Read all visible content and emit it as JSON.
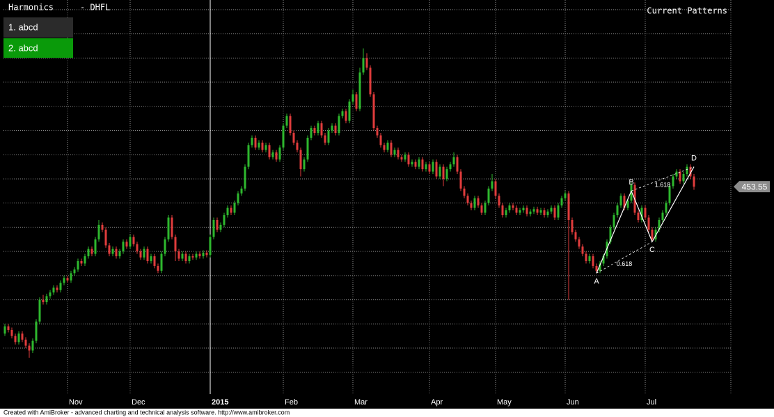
{
  "chart_data": {
    "type": "candlestick",
    "title": "Harmonics",
    "subtitle": "- DHFL",
    "annotation": "Current Patterns",
    "pattern_menu": [
      "1. abcd",
      "2. abcd"
    ],
    "footer": "Created with AmiBroker - advanced charting and technical analysis software. http://www.amibroker.com",
    "up_color": "#2eb82e",
    "down_color": "#e03c3c",
    "grid": true,
    "ytick_labels": false,
    "ylim": [
      282,
      608
    ],
    "yticks": [
      300,
      320,
      340,
      360,
      380,
      400,
      420,
      440,
      460,
      480,
      500,
      520,
      540,
      560,
      580,
      600
    ],
    "categories": [
      null,
      null,
      null,
      null,
      null,
      null,
      null,
      null,
      null,
      null,
      null,
      null,
      null,
      null,
      null,
      null,
      null,
      null,
      "Nov",
      null,
      null,
      null,
      null,
      null,
      null,
      null,
      null,
      null,
      null,
      null,
      null,
      null,
      null,
      null,
      null,
      null,
      "Dec",
      null,
      null,
      null,
      null,
      null,
      null,
      null,
      null,
      null,
      null,
      null,
      null,
      null,
      null,
      null,
      null,
      null,
      null,
      null,
      null,
      null,
      null,
      "2015",
      null,
      null,
      null,
      null,
      null,
      null,
      null,
      null,
      null,
      null,
      null,
      null,
      null,
      null,
      null,
      null,
      null,
      null,
      null,
      null,
      "Feb",
      null,
      null,
      null,
      null,
      null,
      null,
      null,
      null,
      null,
      null,
      null,
      null,
      null,
      null,
      null,
      null,
      null,
      null,
      null,
      "Mar",
      null,
      null,
      null,
      null,
      null,
      null,
      null,
      null,
      null,
      null,
      null,
      null,
      null,
      null,
      null,
      null,
      null,
      null,
      null,
      null,
      null,
      "Apr",
      null,
      null,
      null,
      null,
      null,
      null,
      null,
      null,
      null,
      null,
      null,
      null,
      null,
      null,
      null,
      null,
      null,
      null,
      "May",
      null,
      null,
      null,
      null,
      null,
      null,
      null,
      null,
      null,
      null,
      null,
      null,
      null,
      null,
      null,
      null,
      null,
      null,
      null,
      "Jun",
      null,
      null,
      null,
      null,
      null,
      null,
      null,
      null,
      null,
      null,
      null,
      null,
      null,
      null,
      null,
      null,
      null,
      null,
      null,
      null,
      null,
      null,
      "Jul",
      null,
      null,
      null,
      null,
      null,
      null,
      null,
      null,
      null,
      null,
      null,
      null,
      null,
      null
    ],
    "open": [
      332,
      338,
      335,
      330,
      325,
      332,
      327,
      322,
      318,
      326,
      342,
      360,
      358,
      363,
      366,
      370,
      368,
      374,
      378,
      376,
      382,
      385,
      392,
      390,
      396,
      402,
      398,
      410,
      422,
      418,
      405,
      398,
      402,
      396,
      400,
      408,
      404,
      412,
      406,
      400,
      395,
      402,
      392,
      396,
      388,
      384,
      398,
      410,
      428,
      412,
      400,
      394,
      398,
      392,
      396,
      395,
      398,
      396,
      399,
      397,
      412,
      426,
      418,
      422,
      430,
      436,
      432,
      440,
      448,
      452,
      470,
      488,
      494,
      486,
      490,
      484,
      488,
      478,
      482,
      476,
      486,
      504,
      512,
      498,
      490,
      484,
      468,
      476,
      494,
      502,
      498,
      506,
      496,
      490,
      500,
      504,
      498,
      512,
      516,
      508,
      524,
      530,
      518,
      548,
      560,
      552,
      530,
      502,
      496,
      488,
      484,
      490,
      480,
      484,
      478,
      476,
      480,
      472,
      474,
      470,
      476,
      468,
      472,
      466,
      474,
      462,
      470,
      460,
      468,
      472,
      478,
      466,
      452,
      446,
      440,
      436,
      444,
      438,
      432,
      440,
      452,
      458,
      446,
      438,
      430,
      434,
      438,
      436,
      432,
      434,
      436,
      431,
      433,
      435,
      432,
      434,
      430,
      433,
      436,
      428,
      438,
      444,
      448,
      426,
      416,
      410,
      404,
      398,
      392,
      396,
      388,
      384,
      390,
      396,
      408,
      420,
      430,
      438,
      446,
      436,
      442,
      455,
      432,
      426,
      436,
      428,
      418,
      410,
      418,
      426,
      432,
      440,
      454,
      462,
      466,
      458,
      464,
      470,
      462
    ],
    "high": [
      340,
      340,
      337,
      332,
      334,
      334,
      329,
      324,
      328,
      344,
      362,
      364,
      365,
      368,
      372,
      372,
      376,
      380,
      380,
      384,
      387,
      394,
      394,
      398,
      404,
      404,
      412,
      426,
      424,
      420,
      407,
      404,
      404,
      402,
      410,
      410,
      414,
      414,
      408,
      402,
      404,
      404,
      398,
      398,
      390,
      400,
      412,
      430,
      430,
      414,
      402,
      400,
      400,
      398,
      398,
      400,
      400,
      401,
      401,
      414,
      428,
      428,
      424,
      432,
      438,
      438,
      442,
      450,
      454,
      472,
      490,
      496,
      496,
      492,
      492,
      490,
      490,
      484,
      484,
      488,
      506,
      514,
      514,
      500,
      492,
      486,
      478,
      496,
      504,
      504,
      508,
      508,
      498,
      502,
      506,
      506,
      514,
      518,
      518,
      526,
      534,
      532,
      552,
      568,
      564,
      554,
      532,
      504,
      498,
      490,
      492,
      492,
      486,
      486,
      480,
      482,
      482,
      476,
      476,
      478,
      478,
      474,
      474,
      476,
      476,
      472,
      472,
      470,
      474,
      482,
      480,
      468,
      454,
      448,
      442,
      446,
      446,
      440,
      442,
      454,
      464,
      460,
      448,
      440,
      436,
      440,
      440,
      438,
      436,
      438,
      438,
      435,
      437,
      437,
      436,
      436,
      435,
      438,
      438,
      440,
      446,
      450,
      450,
      428,
      418,
      412,
      406,
      400,
      398,
      398,
      390,
      392,
      398,
      410,
      422,
      432,
      440,
      448,
      448,
      444,
      457,
      457,
      434,
      438,
      438,
      430,
      420,
      420,
      428,
      434,
      442,
      456,
      464,
      468,
      468,
      466,
      472,
      472,
      464
    ],
    "low": [
      330,
      333,
      328,
      323,
      323,
      325,
      320,
      312,
      316,
      324,
      340,
      356,
      356,
      361,
      364,
      366,
      366,
      372,
      374,
      374,
      380,
      383,
      388,
      388,
      394,
      396,
      396,
      408,
      416,
      403,
      396,
      396,
      394,
      394,
      398,
      402,
      402,
      404,
      398,
      393,
      393,
      390,
      390,
      386,
      382,
      382,
      396,
      408,
      410,
      392,
      392,
      392,
      390,
      390,
      393,
      393,
      394,
      394,
      395,
      395,
      410,
      416,
      416,
      420,
      428,
      430,
      430,
      438,
      446,
      450,
      468,
      486,
      484,
      484,
      482,
      482,
      476,
      476,
      474,
      474,
      484,
      502,
      496,
      488,
      482,
      462,
      466,
      474,
      492,
      496,
      496,
      494,
      488,
      488,
      498,
      496,
      496,
      510,
      506,
      506,
      522,
      516,
      516,
      546,
      550,
      528,
      500,
      494,
      486,
      482,
      482,
      478,
      478,
      476,
      474,
      474,
      470,
      470,
      468,
      468,
      466,
      466,
      464,
      464,
      460,
      460,
      454,
      458,
      466,
      470,
      464,
      450,
      444,
      438,
      434,
      434,
      436,
      430,
      430,
      438,
      450,
      444,
      436,
      428,
      428,
      432,
      434,
      430,
      430,
      432,
      429,
      429,
      431,
      430,
      430,
      428,
      428,
      431,
      426,
      426,
      436,
      442,
      360,
      414,
      408,
      402,
      396,
      390,
      390,
      386,
      382,
      382,
      388,
      394,
      406,
      418,
      428,
      436,
      434,
      434,
      440,
      430,
      424,
      424,
      426,
      416,
      408,
      408,
      416,
      424,
      430,
      438,
      452,
      460,
      456,
      456,
      462,
      460,
      451
    ],
    "close": [
      338,
      335,
      330,
      325,
      332,
      327,
      322,
      318,
      326,
      342,
      360,
      358,
      363,
      366,
      370,
      368,
      374,
      378,
      376,
      382,
      385,
      392,
      390,
      396,
      402,
      398,
      410,
      422,
      418,
      405,
      398,
      402,
      396,
      400,
      408,
      404,
      412,
      406,
      400,
      395,
      402,
      392,
      396,
      388,
      384,
      398,
      410,
      428,
      412,
      400,
      394,
      398,
      392,
      396,
      395,
      398,
      396,
      399,
      397,
      412,
      426,
      418,
      422,
      430,
      436,
      432,
      440,
      448,
      452,
      470,
      488,
      494,
      486,
      490,
      484,
      488,
      478,
      482,
      476,
      486,
      504,
      512,
      498,
      490,
      484,
      468,
      476,
      494,
      502,
      498,
      506,
      496,
      490,
      500,
      504,
      498,
      512,
      516,
      508,
      524,
      530,
      518,
      548,
      560,
      552,
      530,
      502,
      496,
      488,
      484,
      490,
      480,
      484,
      478,
      476,
      480,
      472,
      474,
      470,
      476,
      468,
      472,
      466,
      474,
      462,
      470,
      460,
      468,
      472,
      478,
      466,
      452,
      446,
      440,
      436,
      444,
      438,
      432,
      440,
      452,
      458,
      446,
      438,
      430,
      434,
      438,
      436,
      432,
      434,
      436,
      431,
      433,
      435,
      432,
      434,
      430,
      433,
      436,
      428,
      438,
      444,
      448,
      426,
      416,
      410,
      404,
      398,
      392,
      396,
      388,
      384,
      390,
      396,
      408,
      420,
      430,
      438,
      446,
      436,
      442,
      455,
      432,
      426,
      436,
      428,
      418,
      410,
      418,
      426,
      432,
      440,
      454,
      462,
      466,
      458,
      464,
      470,
      462,
      453.55
    ],
    "pattern": {
      "points": [
        {
          "label": "A",
          "x": 170,
          "value": 382
        },
        {
          "label": "B",
          "x": 180,
          "value": 450
        },
        {
          "label": "C",
          "x": 186,
          "value": 408
        },
        {
          "label": "D",
          "x": 198,
          "value": 470
        }
      ],
      "ac_ratio": 0.618,
      "bd_ratio": 1.618
    }
  }
}
